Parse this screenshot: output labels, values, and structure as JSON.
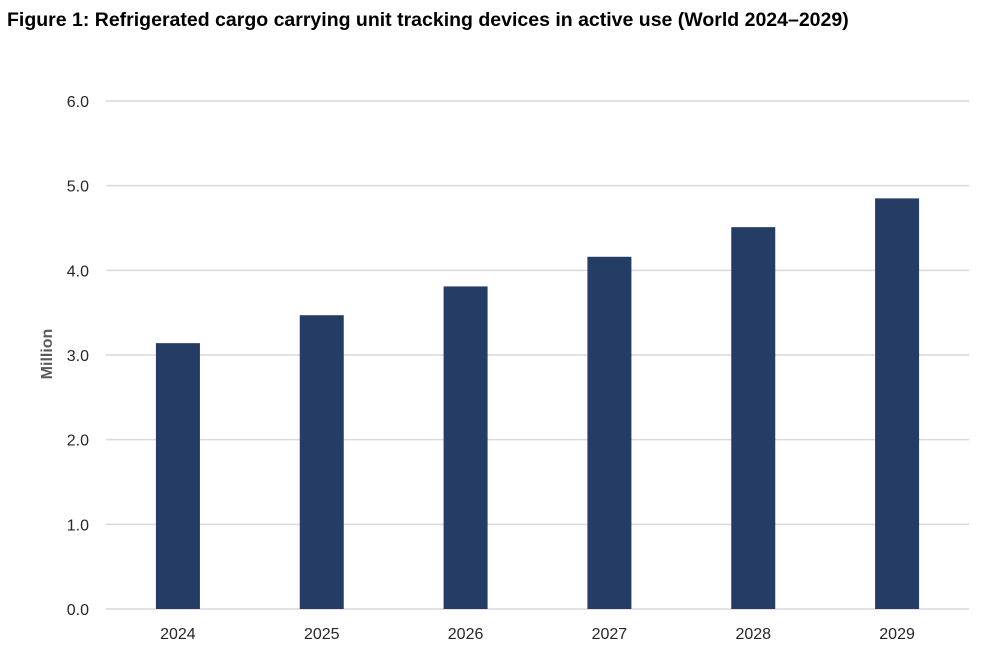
{
  "chart_data": {
    "type": "bar",
    "title": "Figure 1: Refrigerated cargo carrying unit tracking devices in active use (World 2024–2029)",
    "xlabel": "",
    "ylabel": "Million",
    "categories": [
      "2024",
      "2025",
      "2026",
      "2027",
      "2028",
      "2029"
    ],
    "values": [
      3.14,
      3.47,
      3.81,
      4.16,
      4.51,
      4.85
    ],
    "ylim": [
      0,
      6
    ],
    "yticks": [
      "0.0",
      "1.0",
      "2.0",
      "3.0",
      "4.0",
      "5.0",
      "6.0"
    ],
    "grid": true,
    "legend": "none",
    "bar_color": "#253d64",
    "grid_color": "#d9d9d9"
  }
}
